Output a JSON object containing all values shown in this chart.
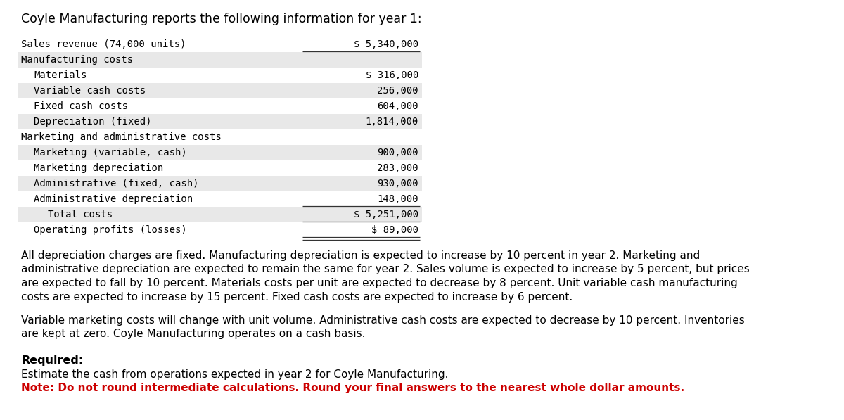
{
  "title": "Coyle Manufacturing reports the following information for year 1:",
  "bg_color": "#ffffff",
  "table_rows": [
    {
      "label": "Sales revenue (74,000 units)",
      "value": "$ 5,340,000",
      "indent": 0,
      "underline_bottom": true,
      "double_underline": false,
      "shade": false
    },
    {
      "label": "Manufacturing costs",
      "value": "",
      "indent": 0,
      "underline_bottom": false,
      "double_underline": false,
      "shade": true
    },
    {
      "label": "  Materials",
      "value": "$ 316,000",
      "indent": 1,
      "underline_bottom": false,
      "double_underline": false,
      "shade": false
    },
    {
      "label": "  Variable cash costs",
      "value": "256,000",
      "indent": 1,
      "underline_bottom": false,
      "double_underline": false,
      "shade": true
    },
    {
      "label": "  Fixed cash costs",
      "value": "604,000",
      "indent": 1,
      "underline_bottom": false,
      "double_underline": false,
      "shade": false
    },
    {
      "label": "  Depreciation (fixed)",
      "value": "1,814,000",
      "indent": 1,
      "underline_bottom": false,
      "double_underline": false,
      "shade": true
    },
    {
      "label": "Marketing and administrative costs",
      "value": "",
      "indent": 0,
      "underline_bottom": false,
      "double_underline": false,
      "shade": false
    },
    {
      "label": "  Marketing (variable, cash)",
      "value": "900,000",
      "indent": 1,
      "underline_bottom": false,
      "double_underline": false,
      "shade": true
    },
    {
      "label": "  Marketing depreciation",
      "value": "283,000",
      "indent": 1,
      "underline_bottom": false,
      "double_underline": false,
      "shade": false
    },
    {
      "label": "  Administrative (fixed, cash)",
      "value": "930,000",
      "indent": 1,
      "underline_bottom": false,
      "double_underline": false,
      "shade": true
    },
    {
      "label": "  Administrative depreciation",
      "value": "148,000",
      "indent": 1,
      "underline_bottom": true,
      "double_underline": false,
      "shade": false
    },
    {
      "label": "    Total costs",
      "value": "$ 5,251,000",
      "indent": 2,
      "underline_bottom": true,
      "double_underline": false,
      "shade": true
    },
    {
      "label": "  Operating profits (losses)",
      "value": "$ 89,000",
      "indent": 1,
      "underline_bottom": true,
      "double_underline": true,
      "shade": false
    }
  ],
  "paragraph1": "All depreciation charges are fixed. Manufacturing depreciation is expected to increase by 10 percent in year 2. Marketing and\nadministrative depreciation are expected to remain the same for year 2. Sales volume is expected to increase by 5 percent, but prices\nare expected to fall by 10 percent. Materials costs per unit are expected to decrease by 8 percent. Unit variable cash manufacturing\ncosts are expected to increase by 15 percent. Fixed cash costs are expected to increase by 6 percent.",
  "paragraph2": "Variable marketing costs will change with unit volume. Administrative cash costs are expected to decrease by 10 percent. Inventories\nare kept at zero. Coyle Manufacturing operates on a cash basis.",
  "required_label": "Required:",
  "required_line": "Estimate the cash from operations expected in year 2 for Coyle Manufacturing.",
  "note_line": "Note: Do not round intermediate calculations. Round your final answers to the nearest whole dollar amounts.",
  "shade_color": "#e8e8e8",
  "text_color": "#000000",
  "red_color": "#cc0000",
  "font_size_title": 12.5,
  "font_size_table": 10.0,
  "font_size_body": 11.0,
  "font_size_required": 11.5
}
